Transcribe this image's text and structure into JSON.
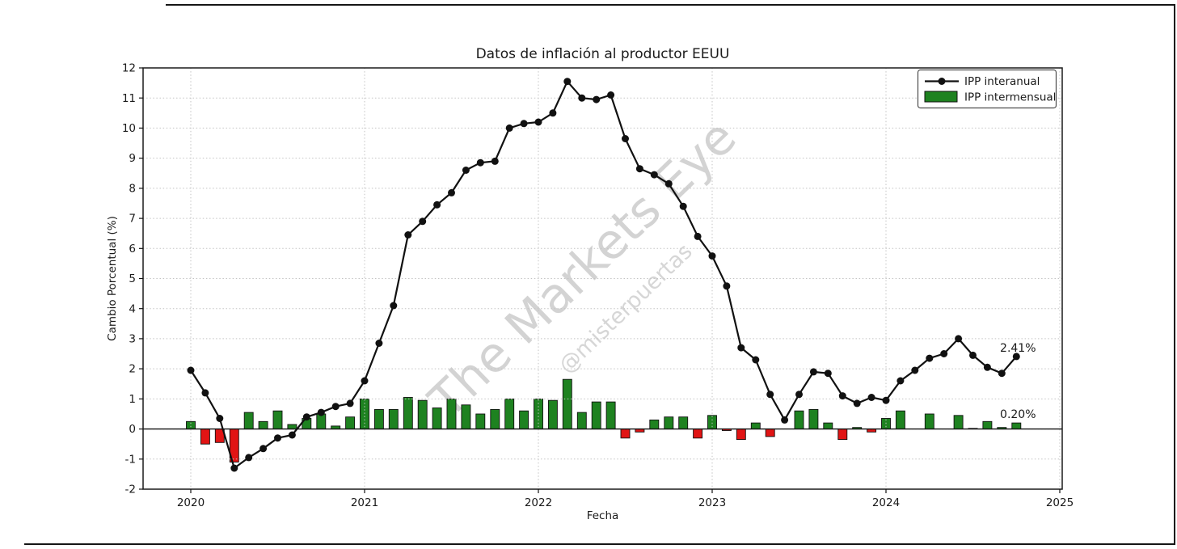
{
  "watermark": {
    "line1": "The Markets Eye",
    "line2": "@misterpuertas"
  },
  "chart_data": {
    "type": "mixed",
    "title": "Datos de inflación al productor EEUU",
    "xlabel": "Fecha",
    "ylabel": "Cambio Porcentual (%)",
    "ylim": [
      -2,
      12
    ],
    "yticks": [
      -2,
      -1,
      0,
      1,
      2,
      3,
      4,
      5,
      6,
      7,
      8,
      9,
      10,
      11,
      12
    ],
    "xticks": [
      2020,
      2021,
      2022,
      2023,
      2024,
      2025
    ],
    "grid": true,
    "legend_position": "upper right",
    "x": [
      "2020-01",
      "2020-02",
      "2020-03",
      "2020-04",
      "2020-05",
      "2020-06",
      "2020-07",
      "2020-08",
      "2020-09",
      "2020-10",
      "2020-11",
      "2020-12",
      "2021-01",
      "2021-02",
      "2021-03",
      "2021-04",
      "2021-05",
      "2021-06",
      "2021-07",
      "2021-08",
      "2021-09",
      "2021-10",
      "2021-11",
      "2021-12",
      "2022-01",
      "2022-02",
      "2022-03",
      "2022-04",
      "2022-05",
      "2022-06",
      "2022-07",
      "2022-08",
      "2022-09",
      "2022-10",
      "2022-11",
      "2022-12",
      "2023-01",
      "2023-02",
      "2023-03",
      "2023-04",
      "2023-05",
      "2023-06",
      "2023-07",
      "2023-08",
      "2023-09",
      "2023-10",
      "2023-11",
      "2023-12",
      "2024-01",
      "2024-02",
      "2024-03",
      "2024-04",
      "2024-05",
      "2024-06",
      "2024-07",
      "2024-08",
      "2024-09",
      "2024-10"
    ],
    "series": [
      {
        "name": "IPP interanual",
        "type": "line",
        "color": "#111111",
        "values": [
          1.95,
          1.2,
          0.35,
          -1.3,
          -0.95,
          -0.65,
          -0.3,
          -0.2,
          0.4,
          0.55,
          0.75,
          0.85,
          1.6,
          2.85,
          4.1,
          6.45,
          6.9,
          7.45,
          7.85,
          8.6,
          8.85,
          8.9,
          10.0,
          10.15,
          10.2,
          10.5,
          11.55,
          11.0,
          10.95,
          11.1,
          9.65,
          8.65,
          8.45,
          8.15,
          7.4,
          6.4,
          5.75,
          4.75,
          2.7,
          2.3,
          1.15,
          0.3,
          1.15,
          1.9,
          1.85,
          1.1,
          0.85,
          1.05,
          0.95,
          1.6,
          1.95,
          2.35,
          2.5,
          3.0,
          2.45,
          2.05,
          1.85,
          2.41
        ]
      },
      {
        "name": "IPP intermensual",
        "type": "bar",
        "color_positive": "#1e8220",
        "color_negative": "#e11414",
        "values": [
          0.25,
          -0.5,
          -0.45,
          -1.1,
          0.55,
          0.25,
          0.6,
          0.15,
          0.35,
          0.5,
          0.1,
          0.4,
          1.0,
          0.65,
          0.65,
          1.05,
          0.95,
          0.7,
          1.0,
          0.8,
          0.5,
          0.65,
          1.0,
          0.6,
          1.0,
          0.95,
          1.65,
          0.55,
          0.9,
          0.9,
          -0.3,
          -0.1,
          0.3,
          0.4,
          0.4,
          -0.3,
          0.45,
          -0.05,
          -0.35,
          0.2,
          -0.25,
          0.0,
          0.6,
          0.65,
          0.2,
          -0.35,
          0.05,
          -0.1,
          0.35,
          0.6,
          0.0,
          0.5,
          0.0,
          0.45,
          0.02,
          0.25,
          0.05,
          0.2
        ]
      }
    ],
    "annotations": [
      {
        "text": "2.41%",
        "month": "2024-10",
        "value": 2.7
      },
      {
        "text": "0.20%",
        "month": "2024-10",
        "value": 0.5
      }
    ]
  }
}
